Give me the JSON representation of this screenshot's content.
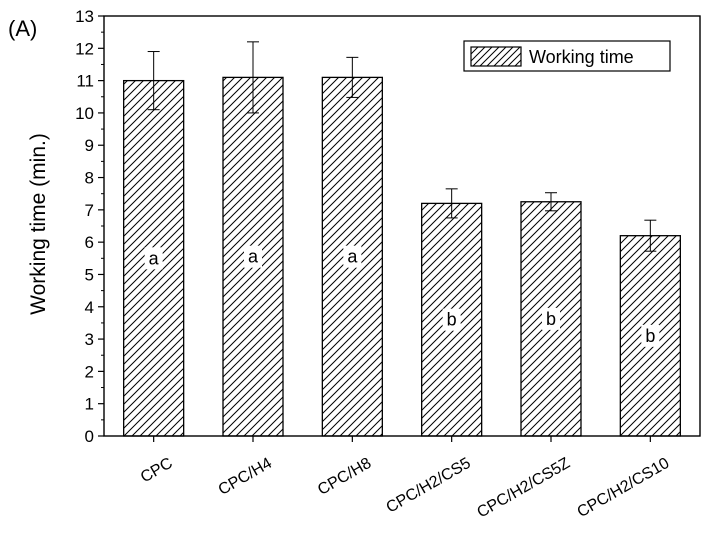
{
  "panel_label": "(A)",
  "chart_data": {
    "type": "bar",
    "categories": [
      "CPC",
      "CPC/H4",
      "CPC/H8",
      "CPC/H2/CS5",
      "CPC/H2/CS5Z",
      "CPC/H2/CS10"
    ],
    "series": [
      {
        "name": "Working time",
        "values": [
          11.0,
          11.1,
          11.1,
          7.2,
          7.25,
          6.2
        ],
        "errors": [
          0.9,
          1.1,
          0.62,
          0.45,
          0.28,
          0.48
        ]
      }
    ],
    "significance_letters": [
      "a",
      "a",
      "a",
      "b",
      "b",
      "b"
    ],
    "xlabel": "",
    "ylabel": "Working time (min.)",
    "ylim": [
      0,
      13
    ],
    "yticks": [
      0,
      1,
      2,
      3,
      4,
      5,
      6,
      7,
      8,
      9,
      10,
      11,
      12,
      13
    ],
    "legend_position": "top-right",
    "grid": false,
    "bar_fill": "hatched",
    "colors": {
      "bar_stroke": "#000000",
      "hatch": "#000000",
      "background": "#ffffff"
    }
  }
}
